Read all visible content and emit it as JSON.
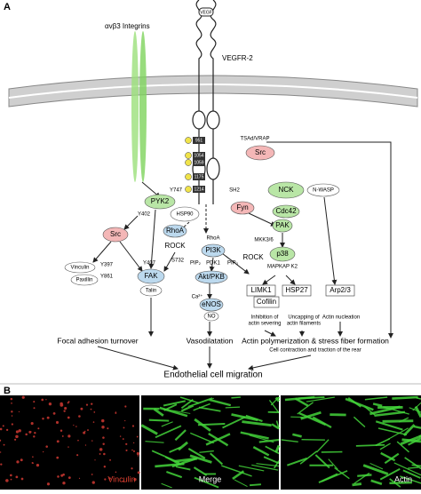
{
  "panel_a": {
    "label": "A",
    "integrins": "αvβ3 Integrins",
    "ligand": "VEGF",
    "receptor": "VEGFR-2",
    "sites": [
      "951",
      "1054",
      "1059",
      "1175",
      "1214"
    ],
    "nodes": [
      "TSAd/VRAP",
      "Src",
      "PYK2",
      "Y747",
      "Y402",
      "Src",
      "HSP90",
      "NCK",
      "N-WASP",
      "Fyn",
      "Cdc42",
      "PAK",
      "MKK3/6",
      "p38",
      "MAPKAP K2",
      "LIMK1",
      "HSP27",
      "Cofilin",
      "Arp2/3",
      "RhoA",
      "ROCK",
      "S732",
      "Y407",
      "FAK",
      "Y397",
      "Y861",
      "Vinculin",
      "Paxillin",
      "Talin",
      "RhoA",
      "PI3K",
      "PDK1",
      "PIP₂",
      "PIP₃",
      "Akt/PKB",
      "Ca²⁺",
      "eNOS",
      "NO",
      "ROCK",
      "SH2"
    ],
    "notes": [
      "Inhibition of",
      "actin severing",
      "Uncapping of",
      "actin filaments",
      "Actin nucleation"
    ],
    "outcomes": [
      "Focal adhesion turnover",
      "Vasodilatation",
      "Actin polymerization & stress fiber formation",
      "Cell contraction and traction of the rear"
    ],
    "final": "Endothelial cell migration"
  },
  "panel_b": {
    "label": "B",
    "images": [
      "Vinculin",
      "Merge",
      "Actin"
    ]
  }
}
